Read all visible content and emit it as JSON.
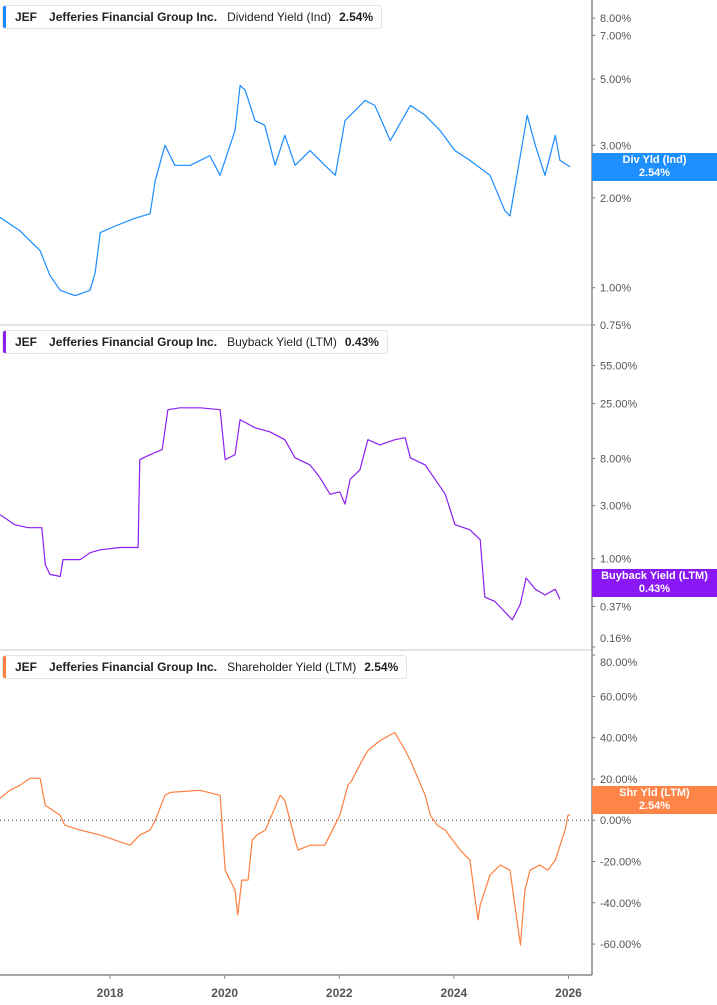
{
  "ticker": "JEF",
  "company": "Jefferies Financial Group Inc.",
  "chart_data": [
    {
      "type": "line",
      "scale": "log",
      "ylim": [
        0.75,
        9.2
      ],
      "xlim": [
        2016.08,
        2026.41
      ],
      "metric": "Dividend Yield (Ind)",
      "value_label": "2.54%",
      "tag": "Div Yld (Ind)",
      "color": "#1a8cff",
      "yticks": [
        {
          "v": 8,
          "label": "8.00%"
        },
        {
          "v": 7,
          "label": "7.00%"
        },
        {
          "v": 5,
          "label": "5.00%"
        },
        {
          "v": 3,
          "label": "3.00%"
        },
        {
          "v": 2,
          "label": "2.00%"
        },
        {
          "v": 1,
          "label": "1.00%"
        },
        {
          "v": 0.75,
          "label": "0.75%"
        }
      ],
      "x": [
        2016.08,
        2016.43,
        2016.78,
        2016.95,
        2017.13,
        2017.39,
        2017.65,
        2017.74,
        2017.83,
        2018.09,
        2018.44,
        2018.7,
        2018.79,
        2018.96,
        2019.13,
        2019.4,
        2019.74,
        2019.92,
        2020.18,
        2020.27,
        2020.36,
        2020.53,
        2020.7,
        2020.88,
        2021.05,
        2021.23,
        2021.49,
        2021.75,
        2021.93,
        2022.1,
        2022.28,
        2022.45,
        2022.62,
        2022.89,
        2023.24,
        2023.5,
        2023.76,
        2024.02,
        2024.28,
        2024.63,
        2024.89,
        2024.98,
        2025.07,
        2025.19,
        2025.28,
        2025.42,
        2025.59,
        2025.77,
        2025.85,
        2026.03
      ],
      "y": [
        1.72,
        1.55,
        1.33,
        1.1,
        0.98,
        0.94,
        0.98,
        1.12,
        1.53,
        1.61,
        1.71,
        1.77,
        2.29,
        3.0,
        2.57,
        2.57,
        2.77,
        2.38,
        3.36,
        4.76,
        4.58,
        3.63,
        3.5,
        2.57,
        3.24,
        2.57,
        2.88,
        2.57,
        2.38,
        3.63,
        3.93,
        4.24,
        4.08,
        3.11,
        4.08,
        3.78,
        3.36,
        2.88,
        2.67,
        2.38,
        1.81,
        1.74,
        2.2,
        3.0,
        3.78,
        3.0,
        2.38,
        3.24,
        2.67,
        2.54
      ]
    },
    {
      "type": "line",
      "scale": "log",
      "ylim": [
        0.15,
        125
      ],
      "xlim": [
        2016.08,
        2026.41
      ],
      "metric": "Buyback Yield (LTM)",
      "value_label": "0.43%",
      "tag": "Buyback Yield (LTM)",
      "color": "#8c1ff2",
      "yticks": [
        {
          "v": 55,
          "label": "55.00%"
        },
        {
          "v": 25,
          "label": "25.00%"
        },
        {
          "v": 8,
          "label": "8.00%"
        },
        {
          "v": 3,
          "label": "3.00%"
        },
        {
          "v": 1,
          "label": "1.00%"
        },
        {
          "v": 0.37,
          "label": "0.37%"
        },
        {
          "v": 0.16,
          "label": "0.16%"
        }
      ],
      "x": [
        2016.08,
        2016.34,
        2016.57,
        2016.81,
        2016.87,
        2016.95,
        2017.13,
        2017.18,
        2017.48,
        2017.65,
        2017.83,
        2018.17,
        2018.49,
        2018.52,
        2018.7,
        2018.91,
        2019.01,
        2019.22,
        2019.57,
        2019.92,
        2020.01,
        2020.18,
        2020.27,
        2020.53,
        2020.79,
        2021.05,
        2021.23,
        2021.49,
        2021.66,
        2021.84,
        2022.01,
        2022.1,
        2022.19,
        2022.36,
        2022.5,
        2022.71,
        2022.97,
        2023.15,
        2023.24,
        2023.5,
        2023.67,
        2023.85,
        2024.02,
        2024.28,
        2024.46,
        2024.54,
        2024.72,
        2024.89,
        2025.02,
        2025.16,
        2025.26,
        2025.42,
        2025.59,
        2025.77,
        2025.85
      ],
      "y": [
        2.49,
        2.02,
        1.9,
        1.9,
        0.88,
        0.72,
        0.69,
        0.98,
        0.98,
        1.13,
        1.2,
        1.26,
        1.26,
        7.8,
        8.65,
        9.6,
        22.0,
        22.9,
        22.9,
        22.0,
        7.8,
        8.65,
        17.9,
        15.1,
        13.9,
        11.8,
        8.1,
        7.0,
        5.4,
        3.8,
        4.0,
        3.1,
        5.2,
        6.3,
        11.8,
        10.6,
        11.8,
        12.3,
        8.1,
        7.0,
        5.2,
        3.8,
        2.02,
        1.82,
        1.48,
        0.45,
        0.41,
        0.33,
        0.28,
        0.39,
        0.67,
        0.53,
        0.47,
        0.53,
        0.43
      ]
    },
    {
      "type": "line",
      "scale": "linear",
      "ylim": [
        -75,
        82
      ],
      "xlim": [
        2016.08,
        2026.41
      ],
      "metric": "Shareholder Yield (LTM)",
      "value_label": "2.54%",
      "tag": "Shr Yld (LTM)",
      "color": "#ff7f3f",
      "yticks": [
        {
          "v": 80,
          "label": "80.00%"
        },
        {
          "v": 60,
          "label": "60.00%"
        },
        {
          "v": 40,
          "label": "40.00%"
        },
        {
          "v": 20,
          "label": "20.00%"
        },
        {
          "v": 0,
          "label": "0.00%"
        },
        {
          "v": -20,
          "label": "-20.00%"
        },
        {
          "v": -40,
          "label": "-40.00%"
        },
        {
          "v": -60,
          "label": "-60.00%"
        }
      ],
      "x": [
        2016.08,
        2016.25,
        2016.43,
        2016.6,
        2016.78,
        2016.87,
        2017.13,
        2017.21,
        2017.48,
        2017.83,
        2018.09,
        2018.35,
        2018.52,
        2018.7,
        2018.79,
        2018.96,
        2019.05,
        2019.57,
        2019.92,
        2020.01,
        2020.18,
        2020.23,
        2020.3,
        2020.41,
        2020.48,
        2020.56,
        2020.71,
        2020.97,
        2021.05,
        2021.23,
        2021.28,
        2021.49,
        2021.75,
        2022.01,
        2022.15,
        2022.22,
        2022.4,
        2022.5,
        2022.71,
        2022.97,
        2023.15,
        2023.24,
        2023.5,
        2023.59,
        2023.71,
        2023.85,
        2024.11,
        2024.28,
        2024.42,
        2024.46,
        2024.63,
        2024.81,
        2024.98,
        2025.16,
        2025.24,
        2025.33,
        2025.5,
        2025.64,
        2025.77,
        2025.94,
        2025.99,
        2026.03
      ],
      "y": [
        10.6,
        14.5,
        16.9,
        20.3,
        20.3,
        7.2,
        2.4,
        -2.4,
        -4.8,
        -7.2,
        -9.7,
        -12.1,
        -7.2,
        -4.8,
        0,
        12.1,
        13.5,
        14.5,
        12.1,
        -24.2,
        -33.8,
        -45.9,
        -29.0,
        -29.0,
        -9.7,
        -7.2,
        -4.8,
        12.1,
        9.7,
        -9.7,
        -14.5,
        -12.1,
        -12.1,
        2.4,
        16.9,
        19.3,
        29.0,
        33.8,
        38.6,
        42.5,
        33.8,
        29.0,
        12.1,
        2.4,
        -2.4,
        -4.8,
        -14.5,
        -19.3,
        -48.3,
        -41.1,
        -26.6,
        -21.7,
        -24.2,
        -60.4,
        -33.8,
        -24.2,
        -21.7,
        -24.2,
        -19.3,
        -4.8,
        2.4,
        2.54
      ]
    }
  ],
  "x_axis": {
    "ticks": [
      {
        "v": 2018,
        "label": "2018"
      },
      {
        "v": 2020,
        "label": "2020"
      },
      {
        "v": 2022,
        "label": "2022"
      },
      {
        "v": 2024,
        "label": "2024"
      },
      {
        "v": 2026,
        "label": "2026"
      }
    ]
  }
}
